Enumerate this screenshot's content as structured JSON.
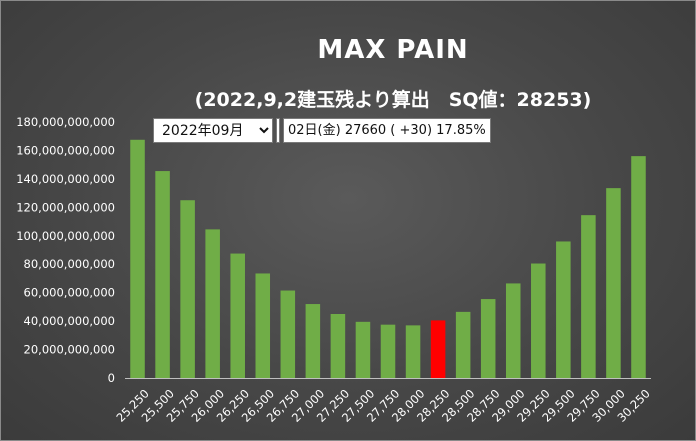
{
  "title": "MAX PAIN",
  "subtitle": "(2022,9,2建玉残より算出　SQ値：28253)",
  "controls": {
    "month_select": {
      "selected": "2022年09月",
      "options": [
        "2022年09月"
      ]
    },
    "info_text": "02日(金) 27660 ( +30) 17.85%"
  },
  "colors": {
    "bar": "#70ad47",
    "highlight_bar": "#ff0000",
    "text": "#ffffff",
    "axis": "#bfbfbf"
  },
  "chart_data": {
    "type": "bar",
    "title": "MAX PAIN",
    "subtitle": "(2022,9,2建玉残より算出　SQ値：28253)",
    "xlabel": "",
    "ylabel": "",
    "ylim": [
      0,
      180000000000
    ],
    "yticks": [
      0,
      20000000000,
      40000000000,
      60000000000,
      80000000000,
      100000000000,
      120000000000,
      140000000000,
      160000000000,
      180000000000
    ],
    "ytick_labels": [
      "0",
      "20,000,000,000",
      "40,000,000,000",
      "60,000,000,000",
      "80,000,000,000",
      "100,000,000,000",
      "120,000,000,000",
      "140,000,000,000",
      "160,000,000,000",
      "180,000,000,000"
    ],
    "categories": [
      "25,250",
      "25,500",
      "25,750",
      "26,000",
      "26,250",
      "26,500",
      "26,750",
      "27,000",
      "27,250",
      "27,500",
      "27,750",
      "28,000",
      "28,250",
      "28,500",
      "28,750",
      "29,000",
      "29,250",
      "29,500",
      "29,750",
      "30,000",
      "30,250"
    ],
    "values": [
      167500000000,
      145500000000,
      125000000000,
      104500000000,
      87500000000,
      73500000000,
      61500000000,
      52000000000,
      45000000000,
      39500000000,
      37500000000,
      37000000000,
      40500000000,
      46500000000,
      55500000000,
      66500000000,
      80500000000,
      96000000000,
      114500000000,
      133500000000,
      156000000000
    ],
    "highlight_category": "28,250",
    "grid": false,
    "legend": "none"
  }
}
